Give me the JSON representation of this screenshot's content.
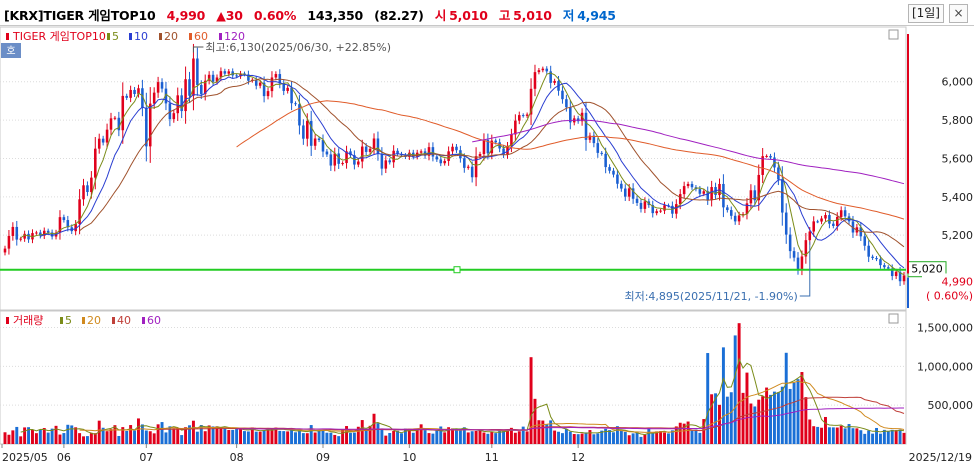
{
  "header": {
    "code": "[KRX]TIGER 게임TOP10",
    "price": "4,990",
    "change": "▲30",
    "change_pct": "0.60%",
    "volume": "143,350",
    "volume_ratio": "(82.27)",
    "open_label": "시",
    "open": "5,010",
    "high_label": "고",
    "high": "5,010",
    "low_label": "저",
    "low": "4,945",
    "period_button": "[1일]",
    "close_icon": "×",
    "colors": {
      "code": "#000000",
      "up": "#e0001b",
      "down": "#0066cc",
      "neutral": "#000000"
    }
  },
  "chart_data": [
    {
      "type": "candlestick",
      "series_name": "TIGER 게임TOP10",
      "legend_ma": [
        "5",
        "10",
        "20",
        "60",
        "120"
      ],
      "ma_colors": [
        "#7b8c1a",
        "#2a3ed1",
        "#a0522d",
        "#e05c2a",
        "#a020c0"
      ],
      "y_ticks": [
        "6,000",
        "5,800",
        "5,600",
        "5,400",
        "5,200"
      ],
      "x_ticks": [
        "2025/05",
        "06",
        "07",
        "08",
        "09",
        "10",
        "11",
        "12",
        "2025/12/19"
      ],
      "annotation_high": "최고:6,130(2025/06/30, +22.85%)",
      "annotation_low": "최저:4,895(2025/11/21, -1.90%)",
      "last_price_tag": "4,990",
      "last_change_tag": "( 0.60%)",
      "hline_tag": "5,020",
      "hline_value": 5020,
      "ylim": [
        4810,
        6280
      ],
      "close": [
        5130,
        5196,
        5243,
        5177,
        5182,
        5207,
        5178,
        5211,
        5214,
        5197,
        5223,
        5214,
        5193,
        5213,
        5294,
        5279,
        5241,
        5221,
        5258,
        5387,
        5460,
        5425,
        5500,
        5651,
        5703,
        5683,
        5750,
        5809,
        5812,
        5747,
        5926,
        5916,
        5957,
        5936,
        5966,
        5864,
        5663,
        5886,
        5943,
        5998,
        5964,
        5887,
        5805,
        5836,
        5929,
        5847,
        6013,
        5927,
        6121,
        5983,
        5935,
        6005,
        6036,
        6000,
        6022,
        6055,
        6042,
        6054,
        6033,
        6028,
        6043,
        6038,
        6005,
        6010,
        5979,
        5995,
        5925,
        5951,
        6022,
        6040,
        5991,
        5952,
        5968,
        5888,
        5883,
        5772,
        5703,
        5795,
        5666,
        5704,
        5696,
        5636,
        5621,
        5563,
        5626,
        5572,
        5576,
        5637,
        5617,
        5568,
        5584,
        5662,
        5634,
        5650,
        5704,
        5624,
        5547,
        5590,
        5580,
        5640,
        5624,
        5617,
        5608,
        5630,
        5610,
        5630,
        5637,
        5614,
        5659,
        5610,
        5595,
        5575,
        5587,
        5637,
        5661,
        5643,
        5601,
        5551,
        5557,
        5502,
        5612,
        5623,
        5697,
        5627,
        5693,
        5684,
        5652,
        5621,
        5663,
        5725,
        5797,
        5826,
        5822,
        5829,
        5963,
        6050,
        6060,
        6068,
        6054,
        5994,
        6004,
        5953,
        5909,
        5867,
        5788,
        5809,
        5794,
        5838,
        5697,
        5719,
        5680,
        5629,
        5624,
        5555,
        5536,
        5516,
        5468,
        5443,
        5401,
        5444,
        5390,
        5368,
        5337,
        5376,
        5357,
        5315,
        5325,
        5328,
        5356,
        5353,
        5312,
        5362,
        5414,
        5456,
        5467,
        5450,
        5440,
        5416,
        5429,
        5382,
        5451,
        5409,
        5467,
        5345,
        5331,
        5301,
        5272,
        5303,
        5310,
        5366,
        5434,
        5382,
        5514,
        5612,
        5613,
        5605,
        5553,
        5491,
        5318,
        5203,
        5117,
        5083,
        5023,
        5089,
        5174,
        5219,
        5272,
        5271,
        5287,
        5305,
        5260,
        5248,
        5295,
        5330,
        5298,
        5272,
        5214,
        5241,
        5194,
        5145,
        5088,
        5081,
        5075,
        5044,
        5033,
        5026,
        4987,
        5009,
        4960,
        4990
      ],
      "volume_y_ticks": [
        "1,500,000",
        "1,000,000",
        "500,000"
      ],
      "volume_legend": {
        "title": "거래량",
        "ma": [
          "5",
          "20",
          "40",
          "60"
        ],
        "colors": [
          "#7b8c1a",
          "#d08a1f",
          "#c0403a",
          "#a020c0"
        ]
      },
      "volume_ylim": [
        0,
        1700000
      ],
      "volume": [
        151106,
        119187,
        175633,
        219779,
        98738,
        213612,
        216587,
        183853,
        139508,
        185802,
        205640,
        147155,
        197941,
        233919,
        121722,
        140963,
        247402,
        239130,
        215102,
        139930,
        98564,
        101785,
        143434,
        139530,
        300508,
        209155,
        165214,
        190633,
        242398,
        103136,
        217546,
        167613,
        244117,
        172838,
        329281,
        252165,
        174008,
        164211,
        137108,
        253554,
        282474,
        149096,
        227620,
        199155,
        200203,
        115045,
        216651,
        240662,
        300016,
        158620,
        244227,
        164707,
        238993,
        226432,
        227707,
        211998,
        213269,
        180585,
        180591,
        202271,
        193838,
        166294,
        161549,
        213231,
        158946,
        158524,
        178656,
        196103,
        197373,
        211546,
        168838,
        165963,
        162251,
        193658,
        150853,
        177014,
        140289,
        138860,
        244003,
        147616,
        166211,
        179931,
        145283,
        144669,
        116778,
        101269,
        182005,
        231356,
        142233,
        147282,
        221768,
        308437,
        187024,
        234025,
        389548,
        268074,
        200215,
        107799,
        141779,
        167239,
        170117,
        138426,
        199309,
        197226,
        144993,
        196168,
        253426,
        178303,
        140512,
        133659,
        172197,
        225432,
        149848,
        215946,
        200612,
        190373,
        200606,
        215669,
        148811,
        164658,
        167356,
        180917,
        147640,
        131640,
        159009,
        140302,
        178880,
        177103,
        183014,
        208096,
        144587,
        164244,
        223656,
        162244,
        1117960,
        581758,
        306342,
        302014,
        254200,
        304106,
        173101,
        157669,
        139817,
        193785,
        158656,
        128426,
        126611,
        134939,
        149442,
        179658,
        125312,
        136213,
        171806,
        195306,
        179312,
        150883,
        229815,
        167355,
        154926,
        112815,
        136694,
        147922,
        91804,
        118309,
        206005,
        134919,
        162812,
        166484,
        146564,
        136622,
        176071,
        226474,
        273633,
        262097,
        289287,
        178662,
        186963,
        143618,
        321286,
        1171524,
        640307,
        652587,
        504452,
        1244575,
        609452,
        666716,
        1398373,
        1556136,
        658452,
        919314,
        521226,
        483643,
        570578,
        615719,
        726839,
        632690,
        674637,
        666717,
        737726,
        1174706,
        709102,
        789812,
        834851,
        927021,
        603577,
        315436,
        229219,
        220113,
        209434,
        347917,
        215224,
        214218,
        212138,
        234373,
        201152,
        257103,
        203356,
        201552,
        177546,
        130681,
        172941,
        133519,
        206281,
        133187,
        181733,
        161643,
        182627,
        179025,
        185264,
        143350
      ]
    }
  ]
}
